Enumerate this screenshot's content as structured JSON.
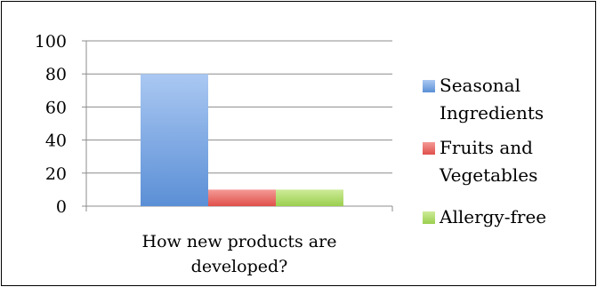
{
  "chart_data": {
    "type": "bar",
    "title": "",
    "xlabel": "",
    "ylabel": "",
    "categories": [
      "How new products are developed?"
    ],
    "category_lines": [
      [
        "How new products are",
        "developed?"
      ]
    ],
    "series": [
      {
        "name": "Seasonal Ingredients",
        "legend_lines": [
          "Seasonal",
          "Ingredients"
        ],
        "values": [
          80
        ],
        "color": "#5b8fd6",
        "color_light": "#aac8f2"
      },
      {
        "name": "Fruits and Vegetables",
        "legend_lines": [
          "Fruits and",
          "Vegetables"
        ],
        "values": [
          10
        ],
        "color": "#e0504b",
        "color_light": "#f49a96"
      },
      {
        "name": "Allergy-free",
        "legend_lines": [
          "Allergy-free"
        ],
        "values": [
          10
        ],
        "color": "#9bcf4f",
        "color_light": "#cdeb98"
      }
    ],
    "ylim": [
      0,
      100
    ],
    "yticks": [
      0,
      20,
      40,
      60,
      80,
      100
    ],
    "grid": true,
    "legend": "right"
  }
}
